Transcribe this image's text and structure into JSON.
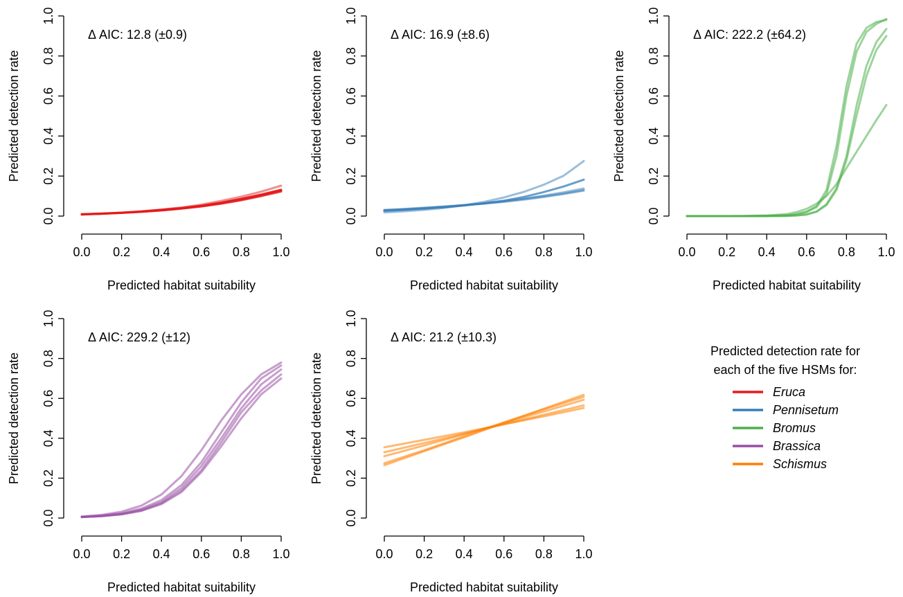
{
  "legend": {
    "title_lines": [
      "Predicted detection rate for",
      "each of the five HSMs for:"
    ],
    "entries": [
      {
        "label": "Eruca",
        "color": "#e41a1c"
      },
      {
        "label": "Pennisetum",
        "color": "#377eb8"
      },
      {
        "label": "Bromus",
        "color": "#4daf4a"
      },
      {
        "label": "Brassica",
        "color": "#984ea3"
      },
      {
        "label": "Schismus",
        "color": "#ff7f00"
      }
    ]
  },
  "chart_data": [
    {
      "type": "line",
      "species": "Eruca",
      "color": "#e41a1c",
      "annotation": "Δ AIC: 12.8  (±0.9)",
      "xlabel": "Predicted habitat suitability",
      "ylabel": "Predicted detection rate",
      "xlim": [
        0,
        1
      ],
      "ylim": [
        0,
        1
      ],
      "xticks": [
        "0.0",
        "0.2",
        "0.4",
        "0.6",
        "0.8",
        "1.0"
      ],
      "yticks": [
        "0.0",
        "0.2",
        "0.4",
        "0.6",
        "0.8",
        "1.0"
      ],
      "x": [
        0,
        0.1,
        0.2,
        0.3,
        0.4,
        0.5,
        0.6,
        0.7,
        0.8,
        0.9,
        1.0
      ],
      "series": [
        {
          "opacity": 0.5,
          "values": [
            0.008,
            0.012,
            0.017,
            0.024,
            0.033,
            0.043,
            0.057,
            0.076,
            0.097,
            0.122,
            0.152
          ]
        },
        {
          "opacity": 0.8,
          "values": [
            0.009,
            0.012,
            0.016,
            0.022,
            0.029,
            0.038,
            0.05,
            0.065,
            0.083,
            0.103,
            0.127
          ]
        },
        {
          "opacity": 0.8,
          "values": [
            0.008,
            0.011,
            0.016,
            0.021,
            0.028,
            0.037,
            0.048,
            0.062,
            0.079,
            0.1,
            0.123
          ]
        },
        {
          "opacity": 0.8,
          "values": [
            0.009,
            0.012,
            0.017,
            0.023,
            0.03,
            0.039,
            0.051,
            0.066,
            0.085,
            0.106,
            0.13
          ]
        },
        {
          "opacity": 0.8,
          "values": [
            0.009,
            0.013,
            0.017,
            0.023,
            0.031,
            0.04,
            0.052,
            0.067,
            0.086,
            0.108,
            0.132
          ]
        }
      ]
    },
    {
      "type": "line",
      "species": "Pennisetum",
      "color": "#377eb8",
      "annotation": "Δ AIC: 16.9  (±8.6)",
      "xlabel": "Predicted habitat suitability",
      "ylabel": "Predicted detection rate",
      "xlim": [
        0,
        1
      ],
      "ylim": [
        0,
        1
      ],
      "xticks": [
        "0.0",
        "0.2",
        "0.4",
        "0.6",
        "0.8",
        "1.0"
      ],
      "yticks": [
        "0.0",
        "0.2",
        "0.4",
        "0.6",
        "0.8",
        "1.0"
      ],
      "x": [
        0,
        0.1,
        0.2,
        0.3,
        0.4,
        0.5,
        0.6,
        0.7,
        0.8,
        0.9,
        1.0
      ],
      "series": [
        {
          "opacity": 0.5,
          "values": [
            0.018,
            0.024,
            0.031,
            0.041,
            0.054,
            0.071,
            0.093,
            0.121,
            0.157,
            0.202,
            0.275
          ]
        },
        {
          "opacity": 0.75,
          "values": [
            0.026,
            0.031,
            0.037,
            0.044,
            0.053,
            0.064,
            0.077,
            0.096,
            0.12,
            0.148,
            0.182
          ]
        },
        {
          "opacity": 0.5,
          "values": [
            0.028,
            0.033,
            0.039,
            0.046,
            0.054,
            0.063,
            0.074,
            0.087,
            0.102,
            0.119,
            0.138
          ]
        },
        {
          "opacity": 0.5,
          "values": [
            0.031,
            0.036,
            0.042,
            0.048,
            0.055,
            0.062,
            0.071,
            0.082,
            0.095,
            0.11,
            0.127
          ]
        },
        {
          "opacity": 0.5,
          "values": [
            0.029,
            0.034,
            0.04,
            0.047,
            0.055,
            0.064,
            0.074,
            0.086,
            0.099,
            0.113,
            0.13
          ]
        }
      ]
    },
    {
      "type": "line",
      "species": "Bromus",
      "color": "#4daf4a",
      "annotation": "Δ AIC: 222.2  (±64.2)",
      "xlabel": "Predicted habitat suitability",
      "ylabel": "Predicted detection rate",
      "xlim": [
        0,
        1
      ],
      "ylim": [
        0,
        1
      ],
      "xticks": [
        "0.0",
        "0.2",
        "0.4",
        "0.6",
        "0.8",
        "1.0"
      ],
      "yticks": [
        "0.0",
        "0.2",
        "0.4",
        "0.6",
        "0.8",
        "1.0"
      ],
      "x": [
        0,
        0.1,
        0.2,
        0.3,
        0.4,
        0.5,
        0.55,
        0.6,
        0.65,
        0.7,
        0.75,
        0.8,
        0.85,
        0.9,
        0.95,
        1.0
      ],
      "series": [
        {
          "opacity": 0.55,
          "values": [
            0,
            0,
            0,
            0,
            0.001,
            0.004,
            0.01,
            0.022,
            0.05,
            0.13,
            0.35,
            0.65,
            0.86,
            0.94,
            0.97,
            0.98
          ]
        },
        {
          "opacity": 0.55,
          "values": [
            0,
            0,
            0,
            0,
            0.001,
            0.003,
            0.008,
            0.02,
            0.045,
            0.11,
            0.3,
            0.6,
            0.82,
            0.92,
            0.96,
            0.985
          ]
        },
        {
          "opacity": 0.55,
          "values": [
            0,
            0,
            0,
            0,
            0,
            0.001,
            0.003,
            0.008,
            0.022,
            0.06,
            0.14,
            0.3,
            0.55,
            0.75,
            0.87,
            0.935
          ]
        },
        {
          "opacity": 0.55,
          "values": [
            0,
            0,
            0,
            0,
            0,
            0.001,
            0.003,
            0.008,
            0.022,
            0.055,
            0.13,
            0.28,
            0.5,
            0.7,
            0.83,
            0.9
          ]
        },
        {
          "opacity": 0.55,
          "values": [
            0,
            0,
            0,
            0.001,
            0.003,
            0.01,
            0.02,
            0.036,
            0.062,
            0.1,
            0.16,
            0.24,
            0.32,
            0.4,
            0.48,
            0.555
          ]
        }
      ]
    },
    {
      "type": "line",
      "species": "Brassica",
      "color": "#984ea3",
      "annotation": "Δ AIC: 229.2  (±12)",
      "xlabel": "Predicted habitat suitability",
      "ylabel": "Predicted detection rate",
      "xlim": [
        0,
        1
      ],
      "ylim": [
        0,
        1
      ],
      "xticks": [
        "0.0",
        "0.2",
        "0.4",
        "0.6",
        "0.8",
        "1.0"
      ],
      "yticks": [
        "0.0",
        "0.2",
        "0.4",
        "0.6",
        "0.8",
        "1.0"
      ],
      "x": [
        0,
        0.1,
        0.2,
        0.3,
        0.4,
        0.5,
        0.6,
        0.7,
        0.8,
        0.9,
        1.0
      ],
      "series": [
        {
          "opacity": 0.55,
          "values": [
            0.008,
            0.016,
            0.032,
            0.063,
            0.118,
            0.21,
            0.34,
            0.49,
            0.62,
            0.72,
            0.78
          ]
        },
        {
          "opacity": 0.55,
          "values": [
            0.006,
            0.012,
            0.024,
            0.048,
            0.09,
            0.165,
            0.28,
            0.43,
            0.58,
            0.7,
            0.765
          ]
        },
        {
          "opacity": 0.55,
          "values": [
            0.005,
            0.01,
            0.021,
            0.042,
            0.08,
            0.15,
            0.26,
            0.4,
            0.55,
            0.67,
            0.745
          ]
        },
        {
          "opacity": 0.55,
          "values": [
            0.005,
            0.01,
            0.019,
            0.038,
            0.074,
            0.138,
            0.24,
            0.38,
            0.53,
            0.64,
            0.72
          ]
        },
        {
          "opacity": 0.55,
          "values": [
            0.005,
            0.009,
            0.018,
            0.036,
            0.07,
            0.13,
            0.23,
            0.36,
            0.5,
            0.62,
            0.7
          ]
        }
      ]
    },
    {
      "type": "line",
      "species": "Schismus",
      "color": "#ff7f00",
      "annotation": "Δ AIC: 21.2  (±10.3)",
      "xlabel": "Predicted habitat suitability",
      "ylabel": "Predicted detection rate",
      "xlim": [
        0,
        1
      ],
      "ylim": [
        0,
        1
      ],
      "xticks": [
        "0.0",
        "0.2",
        "0.4",
        "0.6",
        "0.8",
        "1.0"
      ],
      "yticks": [
        "0.0",
        "0.2",
        "0.4",
        "0.6",
        "0.8",
        "1.0"
      ],
      "x": [
        0,
        0.2,
        0.4,
        0.6,
        0.8,
        1.0
      ],
      "series": [
        {
          "opacity": 0.55,
          "values": [
            0.355,
            0.392,
            0.43,
            0.47,
            0.51,
            0.552
          ]
        },
        {
          "opacity": 0.55,
          "values": [
            0.33,
            0.376,
            0.423,
            0.47,
            0.518,
            0.565
          ]
        },
        {
          "opacity": 0.55,
          "values": [
            0.31,
            0.364,
            0.42,
            0.476,
            0.534,
            0.593
          ]
        },
        {
          "opacity": 0.55,
          "values": [
            0.275,
            0.34,
            0.41,
            0.48,
            0.545,
            0.608
          ]
        },
        {
          "opacity": 0.55,
          "values": [
            0.265,
            0.335,
            0.405,
            0.477,
            0.548,
            0.618
          ]
        }
      ]
    }
  ]
}
